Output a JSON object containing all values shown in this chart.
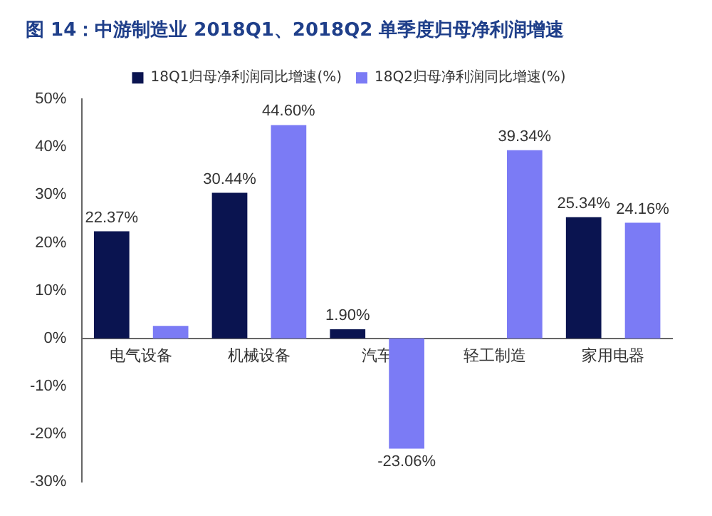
{
  "chart_data": {
    "type": "bar",
    "title": "图 14：中游制造业 2018Q1、2018Q2 单季度归母净利润增速",
    "categories": [
      "电气设备",
      "机械设备",
      "汽车",
      "轻工制造",
      "家用电器"
    ],
    "series": [
      {
        "name": "18Q1归母净利润同比增速(%)",
        "color": "#0a1450",
        "values": [
          22.37,
          30.44,
          1.9,
          null,
          25.34
        ],
        "value_labels": [
          "22.37%",
          "30.44%",
          "1.90%",
          null,
          "25.34%"
        ]
      },
      {
        "name": "18Q2归母净利润同比增速(%)",
        "color": "#7b7bf5",
        "values": [
          2.6,
          44.6,
          -23.06,
          39.34,
          24.16
        ],
        "value_labels": [
          null,
          "44.60%",
          "-23.06%",
          "39.34%",
          "24.16%"
        ]
      }
    ],
    "ylim": [
      -30,
      50
    ],
    "yticks": [
      {
        "value": -30,
        "label": "-30%"
      },
      {
        "value": -20,
        "label": "-20%"
      },
      {
        "value": -10,
        "label": "-10%"
      },
      {
        "value": 0,
        "label": "0%"
      },
      {
        "value": 10,
        "label": "10%"
      },
      {
        "value": 20,
        "label": "20%"
      },
      {
        "value": 30,
        "label": "30%"
      },
      {
        "value": 40,
        "label": "40%"
      },
      {
        "value": 50,
        "label": "50%"
      }
    ],
    "grid": false,
    "legend": "top"
  }
}
